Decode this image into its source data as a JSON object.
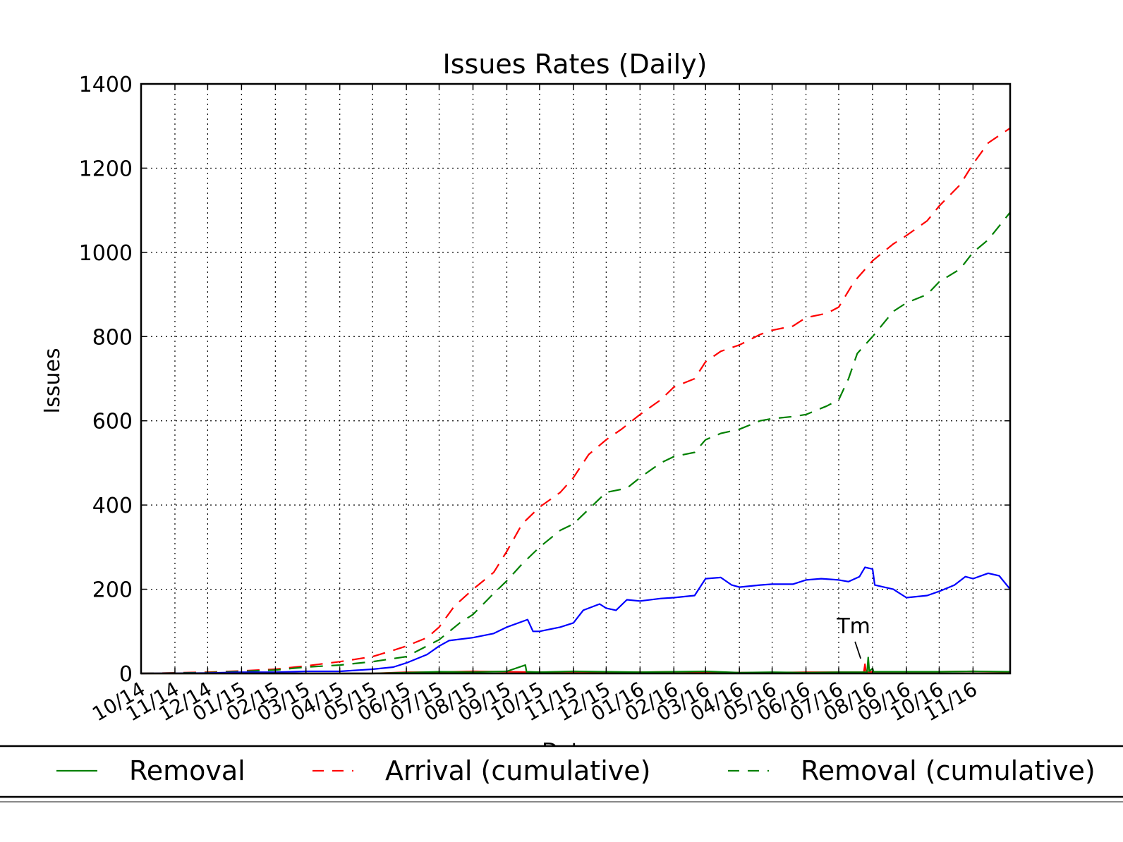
{
  "chart_data": {
    "type": "line",
    "title": "Issues Rates (Daily)",
    "xlabel": "Date",
    "ylabel": "Issues",
    "ylim": [
      0,
      1400
    ],
    "yticks": [
      0,
      200,
      400,
      600,
      800,
      1000,
      1200,
      1400
    ],
    "xlim": [
      "2014-10-01",
      "2016-12-05"
    ],
    "xticks": [
      {
        "date": "2014-10-01",
        "label": "10/14"
      },
      {
        "date": "2014-11-01",
        "label": "11/14"
      },
      {
        "date": "2014-12-01",
        "label": "12/14"
      },
      {
        "date": "2015-01-01",
        "label": "01/15"
      },
      {
        "date": "2015-02-01",
        "label": "02/15"
      },
      {
        "date": "2015-03-01",
        "label": "03/15"
      },
      {
        "date": "2015-04-01",
        "label": "04/15"
      },
      {
        "date": "2015-05-01",
        "label": "05/15"
      },
      {
        "date": "2015-06-01",
        "label": "06/15"
      },
      {
        "date": "2015-07-01",
        "label": "07/15"
      },
      {
        "date": "2015-08-01",
        "label": "08/15"
      },
      {
        "date": "2015-09-01",
        "label": "09/15"
      },
      {
        "date": "2015-10-01",
        "label": "10/15"
      },
      {
        "date": "2015-11-01",
        "label": "11/15"
      },
      {
        "date": "2015-12-01",
        "label": "12/15"
      },
      {
        "date": "2016-01-01",
        "label": "01/16"
      },
      {
        "date": "2016-02-01",
        "label": "02/16"
      },
      {
        "date": "2016-03-01",
        "label": "03/16"
      },
      {
        "date": "2016-04-01",
        "label": "04/16"
      },
      {
        "date": "2016-05-01",
        "label": "05/16"
      },
      {
        "date": "2016-06-01",
        "label": "06/16"
      },
      {
        "date": "2016-07-01",
        "label": "07/16"
      },
      {
        "date": "2016-08-01",
        "label": "08/16"
      },
      {
        "date": "2016-09-01",
        "label": "09/16"
      },
      {
        "date": "2016-10-01",
        "label": "10/16"
      },
      {
        "date": "2016-11-01",
        "label": "11/16"
      }
    ],
    "grid": true,
    "legend_position": "bottom",
    "series": [
      {
        "key": "arrival_cum",
        "name": "Arrival (cumulative)",
        "color": "#ff0000",
        "style": "dashed",
        "in_legend": true,
        "points": [
          [
            "2014-10-01",
            0
          ],
          [
            "2014-12-01",
            3
          ],
          [
            "2015-01-01",
            6
          ],
          [
            "2015-02-01",
            10
          ],
          [
            "2015-03-01",
            18
          ],
          [
            "2015-04-01",
            28
          ],
          [
            "2015-05-01",
            40
          ],
          [
            "2015-05-20",
            55
          ],
          [
            "2015-06-01",
            65
          ],
          [
            "2015-06-20",
            85
          ],
          [
            "2015-07-01",
            110
          ],
          [
            "2015-07-15",
            160
          ],
          [
            "2015-08-01",
            200
          ],
          [
            "2015-08-20",
            240
          ],
          [
            "2015-09-01",
            290
          ],
          [
            "2015-09-15",
            355
          ],
          [
            "2015-10-01",
            395
          ],
          [
            "2015-10-20",
            430
          ],
          [
            "2015-11-01",
            465
          ],
          [
            "2015-11-15",
            520
          ],
          [
            "2015-12-01",
            555
          ],
          [
            "2015-12-15",
            580
          ],
          [
            "2016-01-01",
            615
          ],
          [
            "2016-01-20",
            650
          ],
          [
            "2016-02-01",
            680
          ],
          [
            "2016-02-20",
            700
          ],
          [
            "2016-03-01",
            740
          ],
          [
            "2016-03-15",
            765
          ],
          [
            "2016-04-01",
            780
          ],
          [
            "2016-04-20",
            805
          ],
          [
            "2016-05-01",
            815
          ],
          [
            "2016-05-20",
            825
          ],
          [
            "2016-06-01",
            845
          ],
          [
            "2016-06-20",
            855
          ],
          [
            "2016-07-01",
            870
          ],
          [
            "2016-07-15",
            930
          ],
          [
            "2016-08-01",
            980
          ],
          [
            "2016-08-20",
            1020
          ],
          [
            "2016-09-01",
            1040
          ],
          [
            "2016-09-20",
            1075
          ],
          [
            "2016-10-01",
            1110
          ],
          [
            "2016-10-20",
            1160
          ],
          [
            "2016-11-01",
            1210
          ],
          [
            "2016-11-15",
            1260
          ],
          [
            "2016-12-05",
            1295
          ]
        ]
      },
      {
        "key": "removal_cum",
        "name": "Removal (cumulative)",
        "color": "#008000",
        "style": "dashed",
        "in_legend": true,
        "points": [
          [
            "2014-10-01",
            0
          ],
          [
            "2014-12-01",
            2
          ],
          [
            "2015-01-01",
            5
          ],
          [
            "2015-02-01",
            8
          ],
          [
            "2015-03-01",
            15
          ],
          [
            "2015-04-01",
            20
          ],
          [
            "2015-05-01",
            28
          ],
          [
            "2015-06-01",
            40
          ],
          [
            "2015-07-01",
            80
          ],
          [
            "2015-07-20",
            120
          ],
          [
            "2015-08-01",
            140
          ],
          [
            "2015-08-20",
            190
          ],
          [
            "2015-09-01",
            220
          ],
          [
            "2015-09-15",
            260
          ],
          [
            "2015-10-01",
            300
          ],
          [
            "2015-10-20",
            340
          ],
          [
            "2015-11-01",
            355
          ],
          [
            "2015-11-15",
            390
          ],
          [
            "2015-12-01",
            430
          ],
          [
            "2015-12-20",
            440
          ],
          [
            "2016-01-01",
            465
          ],
          [
            "2016-01-20",
            500
          ],
          [
            "2016-02-01",
            515
          ],
          [
            "2016-02-20",
            525
          ],
          [
            "2016-03-01",
            555
          ],
          [
            "2016-03-15",
            570
          ],
          [
            "2016-04-01",
            580
          ],
          [
            "2016-04-20",
            600
          ],
          [
            "2016-05-01",
            605
          ],
          [
            "2016-05-20",
            610
          ],
          [
            "2016-06-01",
            615
          ],
          [
            "2016-06-20",
            635
          ],
          [
            "2016-07-01",
            650
          ],
          [
            "2016-07-10",
            700
          ],
          [
            "2016-07-18",
            760
          ],
          [
            "2016-08-01",
            800
          ],
          [
            "2016-08-20",
            860
          ],
          [
            "2016-09-01",
            880
          ],
          [
            "2016-09-20",
            900
          ],
          [
            "2016-10-01",
            930
          ],
          [
            "2016-10-20",
            960
          ],
          [
            "2016-11-01",
            1000
          ],
          [
            "2016-11-15",
            1030
          ],
          [
            "2016-12-05",
            1095
          ]
        ]
      },
      {
        "key": "backlog",
        "color": "#0000ff",
        "style": "solid",
        "in_legend": false,
        "points": [
          [
            "2014-10-01",
            0
          ],
          [
            "2014-12-01",
            1
          ],
          [
            "2015-01-01",
            3
          ],
          [
            "2015-02-01",
            3
          ],
          [
            "2015-03-01",
            5
          ],
          [
            "2015-04-01",
            5
          ],
          [
            "2015-05-01",
            10
          ],
          [
            "2015-05-20",
            15
          ],
          [
            "2015-06-01",
            25
          ],
          [
            "2015-06-20",
            45
          ],
          [
            "2015-07-01",
            65
          ],
          [
            "2015-07-10",
            78
          ],
          [
            "2015-08-01",
            85
          ],
          [
            "2015-08-20",
            95
          ],
          [
            "2015-09-01",
            110
          ],
          [
            "2015-09-20",
            128
          ],
          [
            "2015-09-25",
            100
          ],
          [
            "2015-10-01",
            100
          ],
          [
            "2015-10-20",
            110
          ],
          [
            "2015-11-01",
            120
          ],
          [
            "2015-11-10",
            150
          ],
          [
            "2015-11-25",
            165
          ],
          [
            "2015-12-01",
            155
          ],
          [
            "2015-12-10",
            150
          ],
          [
            "2015-12-20",
            175
          ],
          [
            "2016-01-01",
            172
          ],
          [
            "2016-01-20",
            178
          ],
          [
            "2016-02-01",
            180
          ],
          [
            "2016-02-20",
            185
          ],
          [
            "2016-03-01",
            225
          ],
          [
            "2016-03-15",
            228
          ],
          [
            "2016-03-25",
            210
          ],
          [
            "2016-04-01",
            205
          ],
          [
            "2016-04-20",
            210
          ],
          [
            "2016-05-01",
            212
          ],
          [
            "2016-05-20",
            212
          ],
          [
            "2016-06-01",
            222
          ],
          [
            "2016-06-15",
            225
          ],
          [
            "2016-07-01",
            222
          ],
          [
            "2016-07-10",
            218
          ],
          [
            "2016-07-20",
            230
          ],
          [
            "2016-07-25",
            252
          ],
          [
            "2016-08-01",
            248
          ],
          [
            "2016-08-03",
            210
          ],
          [
            "2016-08-20",
            200
          ],
          [
            "2016-09-01",
            180
          ],
          [
            "2016-09-20",
            185
          ],
          [
            "2016-10-01",
            195
          ],
          [
            "2016-10-15",
            210
          ],
          [
            "2016-10-25",
            230
          ],
          [
            "2016-11-01",
            225
          ],
          [
            "2016-11-15",
            238
          ],
          [
            "2016-11-25",
            232
          ],
          [
            "2016-12-05",
            200
          ]
        ]
      },
      {
        "key": "arrival_daily",
        "color": "#ff0000",
        "style": "solid",
        "in_legend": false,
        "points": [
          [
            "2014-10-01",
            0
          ],
          [
            "2015-05-01",
            0
          ],
          [
            "2015-06-01",
            3
          ],
          [
            "2015-07-01",
            3
          ],
          [
            "2015-08-01",
            5
          ],
          [
            "2015-09-01",
            4
          ],
          [
            "2015-10-01",
            3
          ],
          [
            "2015-11-01",
            4
          ],
          [
            "2015-12-01",
            3
          ],
          [
            "2016-01-01",
            3
          ],
          [
            "2016-02-01",
            4
          ],
          [
            "2016-03-01",
            3
          ],
          [
            "2016-04-01",
            2
          ],
          [
            "2016-05-01",
            2
          ],
          [
            "2016-06-01",
            3
          ],
          [
            "2016-07-01",
            3
          ],
          [
            "2016-07-24",
            3
          ],
          [
            "2016-07-25",
            22
          ],
          [
            "2016-07-26",
            3
          ],
          [
            "2016-08-01",
            4
          ],
          [
            "2016-09-01",
            4
          ],
          [
            "2016-10-01",
            4
          ],
          [
            "2016-11-01",
            5
          ],
          [
            "2016-12-05",
            3
          ]
        ]
      },
      {
        "key": "removal_daily",
        "name": "Removal",
        "color": "#008000",
        "style": "solid",
        "in_legend": true,
        "points": [
          [
            "2014-10-01",
            0
          ],
          [
            "2015-05-01",
            0
          ],
          [
            "2015-06-01",
            2
          ],
          [
            "2015-07-01",
            4
          ],
          [
            "2015-08-01",
            3
          ],
          [
            "2015-09-01",
            5
          ],
          [
            "2015-09-18",
            20
          ],
          [
            "2015-09-19",
            4
          ],
          [
            "2015-10-01",
            3
          ],
          [
            "2015-11-01",
            5
          ],
          [
            "2015-12-01",
            4
          ],
          [
            "2016-01-01",
            3
          ],
          [
            "2016-02-01",
            4
          ],
          [
            "2016-03-01",
            5
          ],
          [
            "2016-04-01",
            2
          ],
          [
            "2016-05-01",
            3
          ],
          [
            "2016-06-01",
            2
          ],
          [
            "2016-07-01",
            3
          ],
          [
            "2016-07-27",
            3
          ],
          [
            "2016-07-28",
            38
          ],
          [
            "2016-07-29",
            5
          ],
          [
            "2016-08-01",
            12
          ],
          [
            "2016-08-02",
            4
          ],
          [
            "2016-09-01",
            4
          ],
          [
            "2016-10-01",
            4
          ],
          [
            "2016-11-01",
            5
          ],
          [
            "2016-12-05",
            4
          ]
        ]
      }
    ],
    "annotations": [
      {
        "text": "Tm",
        "date": "2016-07-25",
        "value": 22
      }
    ]
  }
}
